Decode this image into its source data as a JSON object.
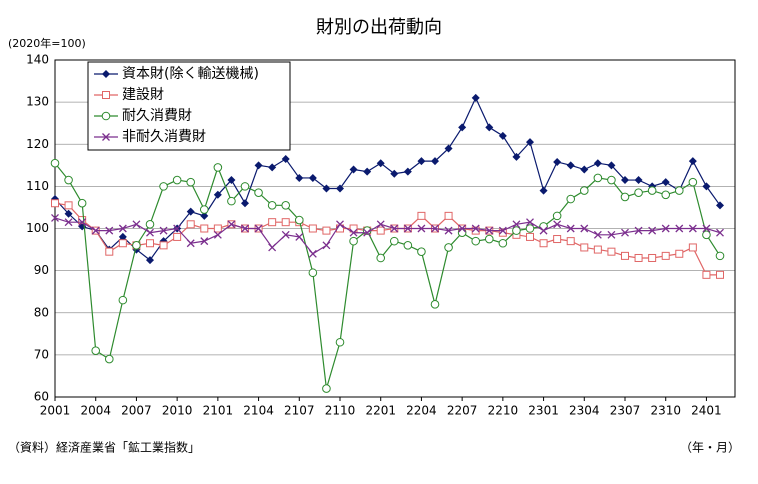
{
  "chart_data": {
    "type": "line",
    "title": "財別の出荷動向",
    "subtitle": "(2020年=100)",
    "source": "（資料）経済産業省「鉱工業指数」",
    "x_label": "（年・月）",
    "categories": [
      "2001",
      null,
      null,
      "2004",
      null,
      null,
      "2007",
      null,
      null,
      "2010",
      null,
      null,
      "2101",
      null,
      null,
      "2104",
      null,
      null,
      "2107",
      null,
      null,
      "2110",
      null,
      null,
      "2201",
      null,
      null,
      "2204",
      null,
      null,
      "2207",
      null,
      null,
      "2210",
      null,
      null,
      "2301",
      null,
      null,
      "2304",
      null,
      null,
      "2307",
      null,
      null,
      "2310",
      null,
      null,
      "2401",
      null
    ],
    "ylim": [
      60,
      140
    ],
    "yticks": [
      60,
      70,
      80,
      90,
      100,
      110,
      120,
      130,
      140
    ],
    "grid": true,
    "legend": "upper left",
    "series": [
      {
        "name": "資本財(除く輸送機械)",
        "color": "#0a1a6e",
        "marker": "diamond",
        "values": [
          107,
          103.5,
          100.5,
          99.5,
          95,
          98,
          95,
          92.5,
          97,
          100,
          104,
          103,
          108,
          111.5,
          106,
          115,
          114.5,
          116.5,
          112,
          112,
          109.5,
          109.5,
          114,
          113.5,
          115.5,
          113,
          113.5,
          116,
          116,
          119,
          124,
          131,
          124,
          122,
          117,
          120.5,
          109,
          115.8,
          115,
          114,
          115.5,
          115,
          111.5,
          111.5,
          110,
          111,
          109,
          116,
          110,
          105.5
        ]
      },
      {
        "name": "建設財",
        "color": "#e06666",
        "marker": "square",
        "values": [
          106,
          105.5,
          102,
          99.5,
          94.5,
          96.5,
          96,
          96.5,
          96,
          98,
          101,
          100,
          100,
          101,
          100,
          100,
          101.5,
          101.5,
          101.5,
          100,
          99.5,
          100,
          100,
          99.5,
          99.5,
          100,
          100,
          103,
          100,
          103,
          100,
          99.5,
          99.5,
          99,
          98.5,
          98,
          96.5,
          97.5,
          97,
          95.5,
          95,
          94.5,
          93.5,
          93,
          93,
          93.5,
          94,
          95.5,
          89,
          89
        ]
      },
      {
        "name": "耐久消費財",
        "color": "#2e8b2e",
        "marker": "circle",
        "values": [
          115.5,
          111.5,
          106,
          71,
          69,
          83,
          96,
          101,
          110,
          111.5,
          111,
          104.5,
          114.5,
          106.5,
          110,
          108.5,
          105.5,
          105.5,
          102,
          89.5,
          62,
          73,
          97,
          99.5,
          93,
          97,
          96,
          94.5,
          82,
          95.5,
          99,
          97,
          97.5,
          96.5,
          99.5,
          100,
          100.5,
          103,
          107,
          109,
          112,
          111.5,
          107.5,
          108.5,
          109,
          108,
          109,
          111,
          98.5,
          93.5
        ]
      },
      {
        "name": "非耐久消費財",
        "color": "#7b2f8e",
        "marker": "x",
        "values": [
          102.5,
          101.5,
          101.5,
          99.5,
          99.5,
          100,
          101,
          99,
          99.5,
          100,
          96.5,
          97,
          98.5,
          101,
          100,
          100,
          95.5,
          98.5,
          98,
          94,
          96,
          101,
          99,
          99,
          101,
          100,
          100,
          100,
          100,
          99.5,
          100,
          100,
          99.5,
          99.5,
          101,
          101.5,
          99.5,
          101,
          100,
          100,
          98.5,
          98.5,
          99,
          99.5,
          99.5,
          100,
          100,
          100,
          100,
          99
        ]
      }
    ]
  }
}
